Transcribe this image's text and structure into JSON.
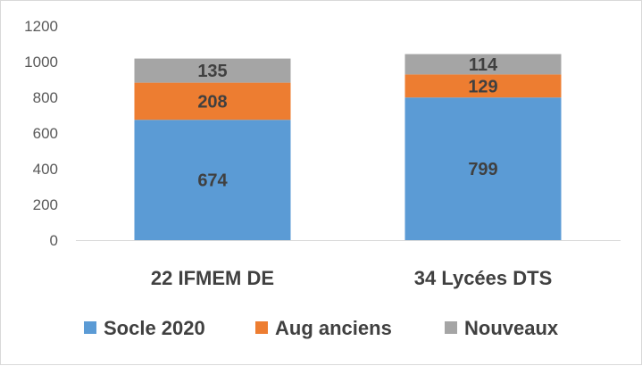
{
  "chart_data": {
    "type": "bar",
    "stacked": true,
    "categories": [
      "22 IFMEM DE",
      "34 Lycées DTS"
    ],
    "series": [
      {
        "name": "Socle 2020",
        "values": [
          674,
          799
        ],
        "color": "#5b9bd5"
      },
      {
        "name": "Aug anciens",
        "values": [
          208,
          129
        ],
        "color": "#ed7d31"
      },
      {
        "name": "Nouveaux",
        "values": [
          135,
          114
        ],
        "color": "#a5a5a5"
      }
    ],
    "title": "",
    "xlabel": "",
    "ylabel": "",
    "ylim": [
      0,
      1200
    ],
    "yticks": [
      0,
      200,
      400,
      600,
      800,
      1000,
      1200
    ],
    "grid": false,
    "legend_position": "bottom"
  }
}
